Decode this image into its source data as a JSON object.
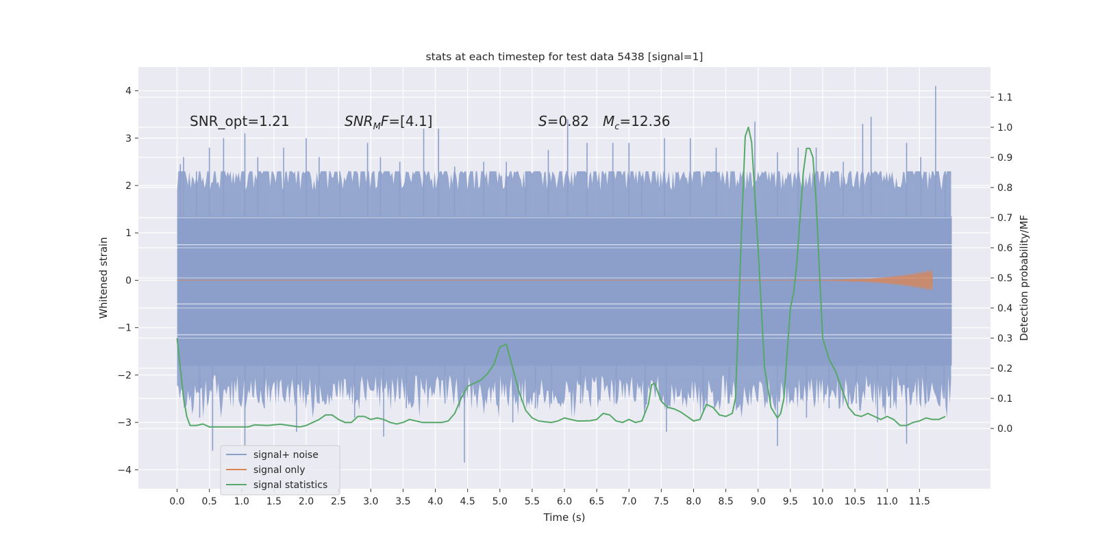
{
  "chart_data": {
    "type": "line",
    "title": "stats at each timestep for test data 5438 [signal=1]",
    "xlabel": "Time (s)",
    "ylabel_left": "Whitened strain",
    "ylabel_right": "Detection probability/MF",
    "xlim": [
      -0.6,
      12.6
    ],
    "ylim_left": [
      -4.4,
      4.5
    ],
    "ylim_right": [
      -0.2,
      1.2
    ],
    "x_ticks": [
      0.0,
      0.5,
      1.0,
      1.5,
      2.0,
      2.5,
      3.0,
      3.5,
      4.0,
      4.5,
      5.0,
      5.5,
      6.0,
      6.5,
      7.0,
      7.5,
      8.0,
      8.5,
      9.0,
      9.5,
      10.0,
      10.5,
      11.0,
      11.5
    ],
    "x_tick_labels": [
      "0.0",
      "0.5",
      "1.0",
      "1.5",
      "2.0",
      "2.5",
      "3.0",
      "3.5",
      "4.0",
      "4.5",
      "5.0",
      "5.5",
      "6.0",
      "6.5",
      "7.0",
      "7.5",
      "8.0",
      "8.5",
      "9.0",
      "9.5",
      "10.0",
      "10.5",
      "11.0",
      "11.5"
    ],
    "y_left_ticks": [
      4,
      3,
      2,
      1,
      0,
      -1,
      -2,
      -3,
      -4
    ],
    "y_left_tick_labels": [
      "4",
      "3",
      "2",
      "1",
      "0",
      "−1",
      "−2",
      "−3",
      "−4"
    ],
    "y_right_ticks": [
      1.1,
      1.0,
      0.9,
      0.8,
      0.7,
      0.6,
      0.5,
      0.4,
      0.3,
      0.2,
      0.1,
      0.0
    ],
    "y_right_tick_labels": [
      "1.1",
      "1.0",
      "0.9",
      "0.8",
      "0.7",
      "0.6",
      "0.5",
      "0.4",
      "0.3",
      "0.2",
      "0.1",
      "0.0"
    ],
    "grid": true,
    "legend_position": "lower-left",
    "annotations": {
      "snr_opt": "SNR_opt=1.21",
      "snr_mf": {
        "italic": "SNR",
        "sub": "M",
        "italic2": "F",
        "rest": "=[4.1]"
      },
      "s": {
        "italic": "S",
        "rest": "=0.82"
      },
      "mc": {
        "italic": "M",
        "sub": "c",
        "rest": "=12.36"
      }
    },
    "series": [
      {
        "name": "signal+ noise",
        "axis": "left",
        "color": "#8c9fcb",
        "x_range": [
          0.0,
          12.0
        ],
        "band_upper": 1.35,
        "band_lower": -1.8,
        "peaks": [
          [
            0.05,
            2.45
          ],
          [
            0.1,
            2.6
          ],
          [
            0.3,
            2.3
          ],
          [
            0.5,
            2.8
          ],
          [
            0.72,
            3.0
          ],
          [
            1.05,
            3.1
          ],
          [
            1.25,
            2.6
          ],
          [
            1.65,
            2.8
          ],
          [
            2.0,
            3.0
          ],
          [
            2.2,
            2.6
          ],
          [
            2.52,
            2.3
          ],
          [
            2.95,
            2.9
          ],
          [
            3.15,
            2.6
          ],
          [
            3.45,
            2.5
          ],
          [
            3.82,
            3.2
          ],
          [
            4.05,
            3.2
          ],
          [
            4.3,
            2.4
          ],
          [
            4.75,
            2.5
          ],
          [
            5.1,
            2.5
          ],
          [
            5.4,
            2.3
          ],
          [
            5.75,
            2.75
          ],
          [
            6.05,
            3.4
          ],
          [
            6.35,
            2.9
          ],
          [
            6.75,
            2.9
          ],
          [
            7.0,
            2.9
          ],
          [
            7.2,
            2.2
          ],
          [
            7.55,
            3.0
          ],
          [
            7.95,
            3.0
          ],
          [
            8.35,
            2.8
          ],
          [
            8.95,
            3.35
          ],
          [
            9.3,
            2.7
          ],
          [
            9.62,
            2.8
          ],
          [
            9.9,
            2.8
          ],
          [
            10.32,
            2.5
          ],
          [
            10.62,
            3.3
          ],
          [
            10.75,
            3.45
          ],
          [
            11.3,
            2.9
          ],
          [
            11.52,
            2.6
          ],
          [
            11.75,
            4.1
          ],
          [
            11.9,
            2.3
          ]
        ],
        "troughs": [
          [
            0.35,
            -2.9
          ],
          [
            0.55,
            -3.6
          ],
          [
            1.05,
            -3.5
          ],
          [
            1.35,
            -2.7
          ],
          [
            1.85,
            -3.2
          ],
          [
            2.2,
            -2.6
          ],
          [
            2.75,
            -2.9
          ],
          [
            3.2,
            -3.3
          ],
          [
            3.55,
            -2.7
          ],
          [
            4.15,
            -2.6
          ],
          [
            4.45,
            -3.85
          ],
          [
            5.2,
            -3.0
          ],
          [
            5.55,
            -2.7
          ],
          [
            5.8,
            -2.6
          ],
          [
            6.25,
            -2.6
          ],
          [
            6.8,
            -2.6
          ],
          [
            7.25,
            -2.7
          ],
          [
            7.58,
            -3.2
          ],
          [
            8.15,
            -2.75
          ],
          [
            8.55,
            -2.6
          ],
          [
            9.3,
            -3.5
          ],
          [
            9.75,
            -2.9
          ],
          [
            10.1,
            -2.7
          ],
          [
            10.52,
            -2.6
          ],
          [
            10.85,
            -3.0
          ],
          [
            11.05,
            -2.7
          ],
          [
            11.3,
            -3.45
          ],
          [
            11.6,
            -2.6
          ],
          [
            11.88,
            -2.5
          ]
        ]
      },
      {
        "name": "signal only",
        "axis": "left",
        "color": "#dd8452",
        "x_range": [
          0.0,
          11.7
        ],
        "chirp_start": 9.5,
        "chirp_peak_time": 11.65,
        "chirp_peak_amplitude": 0.22
      },
      {
        "name": "signal statistics",
        "axis": "right",
        "color": "#55a868",
        "x": [
          0.0,
          0.1,
          0.15,
          0.2,
          0.3,
          0.4,
          0.5,
          0.6,
          0.8,
          1.0,
          1.1,
          1.2,
          1.4,
          1.6,
          1.8,
          1.9,
          2.0,
          2.1,
          2.2,
          2.3,
          2.4,
          2.5,
          2.6,
          2.7,
          2.8,
          2.9,
          3.0,
          3.1,
          3.2,
          3.3,
          3.4,
          3.5,
          3.6,
          3.7,
          3.8,
          3.9,
          4.0,
          4.1,
          4.2,
          4.3,
          4.4,
          4.5,
          4.6,
          4.7,
          4.8,
          4.9,
          5.0,
          5.1,
          5.2,
          5.3,
          5.4,
          5.5,
          5.6,
          5.7,
          5.8,
          5.9,
          6.0,
          6.1,
          6.2,
          6.3,
          6.4,
          6.5,
          6.6,
          6.7,
          6.8,
          6.9,
          7.0,
          7.1,
          7.2,
          7.3,
          7.35,
          7.4,
          7.5,
          7.6,
          7.7,
          7.8,
          7.9,
          8.0,
          8.1,
          8.2,
          8.3,
          8.4,
          8.5,
          8.6,
          8.65,
          8.7,
          8.75,
          8.8,
          8.85,
          8.9,
          9.0,
          9.1,
          9.2,
          9.3,
          9.35,
          9.4,
          9.5,
          9.55,
          9.6,
          9.7,
          9.75,
          9.8,
          9.85,
          9.9,
          10.0,
          10.1,
          10.2,
          10.3,
          10.4,
          10.5,
          10.6,
          10.7,
          10.8,
          10.9,
          11.0,
          11.1,
          11.2,
          11.3,
          11.4,
          11.5,
          11.6,
          11.7,
          11.8,
          11.9
        ],
        "y": [
          0.3,
          0.1,
          0.04,
          0.01,
          0.01,
          0.015,
          0.005,
          0.005,
          0.005,
          0.005,
          0.005,
          0.012,
          0.01,
          0.014,
          0.008,
          0.005,
          0.01,
          0.02,
          0.03,
          0.045,
          0.045,
          0.03,
          0.02,
          0.02,
          0.04,
          0.04,
          0.03,
          0.035,
          0.03,
          0.02,
          0.015,
          0.02,
          0.03,
          0.025,
          0.02,
          0.02,
          0.02,
          0.02,
          0.025,
          0.05,
          0.1,
          0.14,
          0.15,
          0.16,
          0.18,
          0.21,
          0.27,
          0.28,
          0.2,
          0.12,
          0.06,
          0.035,
          0.025,
          0.022,
          0.02,
          0.025,
          0.035,
          0.03,
          0.025,
          0.025,
          0.026,
          0.03,
          0.05,
          0.045,
          0.025,
          0.02,
          0.03,
          0.02,
          0.025,
          0.08,
          0.145,
          0.15,
          0.09,
          0.07,
          0.065,
          0.055,
          0.04,
          0.025,
          0.03,
          0.08,
          0.07,
          0.045,
          0.04,
          0.05,
          0.1,
          0.4,
          0.7,
          0.97,
          1.0,
          0.95,
          0.6,
          0.2,
          0.07,
          0.035,
          0.05,
          0.1,
          0.4,
          0.45,
          0.55,
          0.85,
          0.93,
          0.93,
          0.9,
          0.75,
          0.3,
          0.23,
          0.19,
          0.13,
          0.07,
          0.045,
          0.04,
          0.05,
          0.04,
          0.03,
          0.04,
          0.03,
          0.01,
          0.01,
          0.02,
          0.025,
          0.035,
          0.03,
          0.03,
          0.04
        ]
      }
    ]
  }
}
